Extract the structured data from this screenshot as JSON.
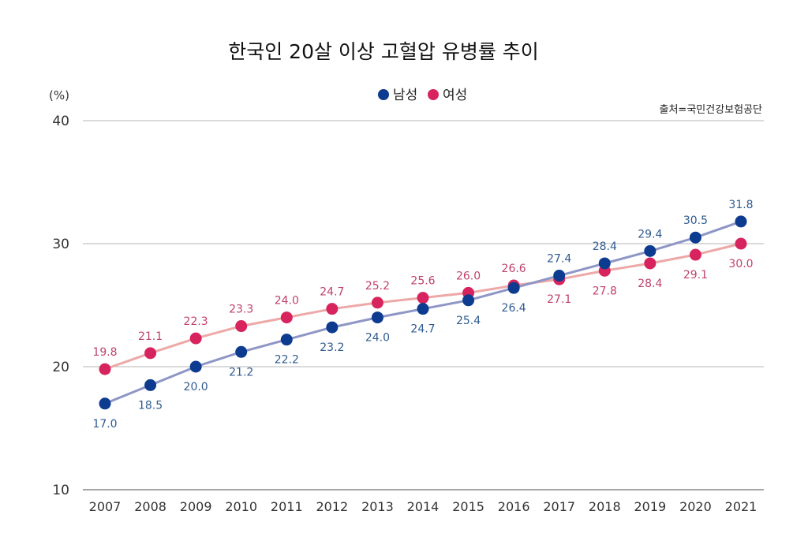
{
  "chart_data": {
    "type": "line",
    "title": "한국인 20살 이상 고혈압 유병률 추이",
    "unit_label": "(%)",
    "source": "출처=국민건강보험공단",
    "legend_position": "top-center",
    "grid": true,
    "ylim": [
      10,
      40
    ],
    "yticks": [
      "10",
      "20",
      "30",
      "40"
    ],
    "x": [
      "2007",
      "2008",
      "2009",
      "2010",
      "2011",
      "2012",
      "2013",
      "2014",
      "2015",
      "2016",
      "2017",
      "2018",
      "2019",
      "2020",
      "2021"
    ],
    "series": [
      {
        "name": "남성",
        "color": "#0c3b8f",
        "line_color": "#8e96c6",
        "values": [
          17.0,
          18.5,
          20.0,
          21.2,
          22.2,
          23.2,
          24.0,
          24.7,
          25.4,
          26.4,
          27.4,
          28.4,
          29.4,
          30.5,
          31.8
        ],
        "labels": [
          "17.0",
          "18.5",
          "20.0",
          "21.2",
          "22.2",
          "23.2",
          "24.0",
          "24.7",
          "25.4",
          "26.4",
          "27.4",
          "28.4",
          "29.4",
          "30.5",
          "31.8"
        ]
      },
      {
        "name": "여성",
        "color": "#d7245e",
        "line_color": "#eda8a8",
        "values": [
          19.8,
          21.1,
          22.3,
          23.3,
          24.0,
          24.7,
          25.2,
          25.6,
          26.0,
          26.6,
          27.1,
          27.8,
          28.4,
          29.1,
          30.0
        ],
        "labels": [
          "19.8",
          "21.1",
          "22.3",
          "23.3",
          "24.0",
          "24.7",
          "25.2",
          "25.6",
          "26.0",
          "26.6",
          "27.1",
          "27.8",
          "28.4",
          "29.1",
          "30.0"
        ]
      }
    ]
  }
}
